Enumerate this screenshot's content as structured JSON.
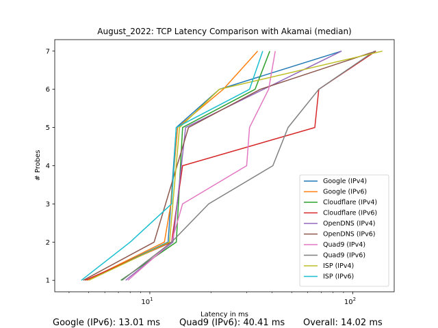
{
  "chart_data": {
    "type": "line",
    "title": "August_2022: TCP Latency Comparison with Akamai (median)",
    "xlabel": "Latency in ms",
    "ylabel": "# Probes",
    "xscale": "log",
    "xlim": [
      3.4,
      160
    ],
    "ylim": [
      0.7,
      7.3
    ],
    "x_ticks": [
      {
        "value": 10,
        "base": "10",
        "exp": "1"
      },
      {
        "value": 100,
        "base": "10",
        "exp": "2"
      }
    ],
    "y_ticks": [
      "1",
      "2",
      "3",
      "4",
      "5",
      "6",
      "7"
    ],
    "legend_position": "lower-right",
    "series": [
      {
        "name": "Google (IPv4)",
        "color": "#1f77b4",
        "x": [
          4.9,
          12.3,
          13.5,
          22,
          88
        ],
        "y": [
          1,
          2,
          5,
          6,
          7
        ]
      },
      {
        "name": "Google (IPv6)",
        "color": "#ff7f0e",
        "x": [
          4.9,
          11.8,
          12.7,
          13.7,
          23,
          34
        ],
        "y": [
          1,
          2,
          3,
          5,
          6,
          7
        ]
      },
      {
        "name": "Cloudflare (IPv4)",
        "color": "#2ca02c",
        "x": [
          7.2,
          13.5,
          14.5,
          33,
          39
        ],
        "y": [
          1,
          2,
          5,
          6,
          7
        ]
      },
      {
        "name": "Cloudflare (IPv6)",
        "color": "#d62728",
        "x": [
          4.8,
          12.8,
          14.5,
          65,
          68,
          130
        ],
        "y": [
          1,
          2,
          4,
          5,
          6,
          7
        ]
      },
      {
        "name": "OpenDNS (IPv4)",
        "color": "#9467bd",
        "x": [
          7.6,
          13,
          15,
          88
        ],
        "y": [
          1,
          2,
          5,
          7
        ]
      },
      {
        "name": "OpenDNS (IPv6)",
        "color": "#8c564b",
        "x": [
          4.7,
          10.5,
          15.5,
          35,
          130
        ],
        "y": [
          1,
          2,
          5,
          6,
          7
        ]
      },
      {
        "name": "Quad9 (IPv4)",
        "color": "#e377c2",
        "x": [
          7.8,
          12.8,
          14.5,
          30,
          31,
          38.5,
          41.5
        ],
        "y": [
          1,
          2,
          3,
          4,
          5,
          6,
          7
        ]
      },
      {
        "name": "Quad9 (IPv6)",
        "color": "#7f7f7f",
        "x": [
          7.3,
          12.8,
          19.5,
          40.4,
          48,
          68,
          128
        ],
        "y": [
          1,
          2,
          3,
          4,
          5,
          6,
          7
        ]
      },
      {
        "name": "ISP (IPv4)",
        "color": "#bcbd22",
        "x": [
          5.0,
          12.5,
          14,
          22,
          140
        ],
        "y": [
          1,
          2,
          5,
          6,
          7
        ]
      },
      {
        "name": "ISP (IPv6)",
        "color": "#17becf",
        "x": [
          4.6,
          8,
          12.8,
          13.5,
          31,
          36
        ],
        "y": [
          1,
          2,
          3,
          5,
          6,
          7
        ]
      }
    ]
  },
  "footer": {
    "google_ipv6": "Google (IPv6): 13.01 ms",
    "quad9_ipv6": "Quad9 (IPv6): 40.41 ms",
    "overall": "Overall: 14.02 ms"
  }
}
